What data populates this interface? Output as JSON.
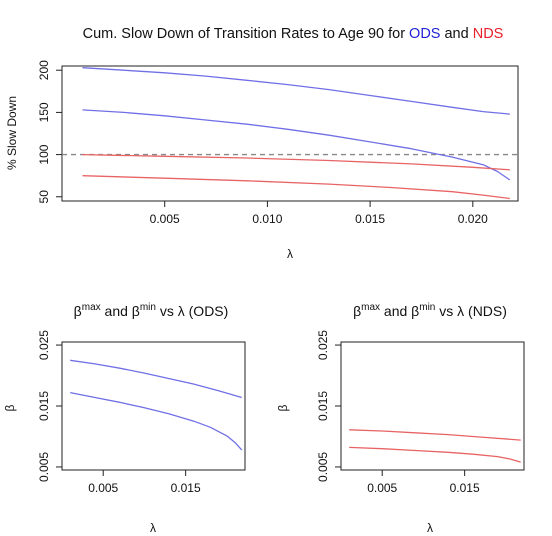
{
  "colors": {
    "ods": "#7070e6",
    "nds": "#e86464",
    "ref": "#888888"
  },
  "chart_data": [
    {
      "id": "top",
      "type": "line",
      "title": "Cum. Slow Down of Transition Rates to Age 90 for ODS and NDS",
      "title_parts": {
        "pre": "Cum. Slow Down of Transition Rates to Age 90 for ",
        "ods": "ODS",
        "and": " and ",
        "nds": "NDS"
      },
      "xlabel": "λ",
      "ylabel": "% Slow Down",
      "xlim": [
        0.0,
        0.0222
      ],
      "ylim": [
        45,
        205
      ],
      "xticks": [
        0.005,
        0.01,
        0.015,
        0.02
      ],
      "xtick_labels": [
        "0.005",
        "0.010",
        "0.015",
        "0.020"
      ],
      "yticks": [
        50,
        100,
        150,
        200
      ],
      "ytick_labels": [
        "50",
        "100",
        "150",
        "200"
      ],
      "reference_line": 100,
      "series": [
        {
          "color": "ods",
          "x": [
            0.001,
            0.003,
            0.005,
            0.007,
            0.009,
            0.011,
            0.013,
            0.015,
            0.017,
            0.019,
            0.0205,
            0.0218
          ],
          "y": [
            203,
            200,
            197,
            193,
            188,
            183,
            177,
            170,
            163,
            156,
            151,
            148
          ]
        },
        {
          "color": "ods",
          "x": [
            0.001,
            0.003,
            0.005,
            0.007,
            0.009,
            0.011,
            0.013,
            0.015,
            0.017,
            0.019,
            0.0205,
            0.0212,
            0.0218
          ],
          "y": [
            153,
            150,
            146,
            141,
            136,
            130,
            123,
            115,
            107,
            97,
            88,
            80,
            70
          ]
        },
        {
          "color": "nds",
          "x": [
            0.001,
            0.005,
            0.009,
            0.013,
            0.017,
            0.02,
            0.0218
          ],
          "y": [
            100,
            98,
            96,
            93,
            89,
            85,
            82
          ]
        },
        {
          "color": "nds",
          "x": [
            0.001,
            0.005,
            0.009,
            0.013,
            0.016,
            0.019,
            0.0205,
            0.0218
          ],
          "y": [
            75,
            72,
            69,
            65,
            61,
            56,
            52,
            48
          ]
        }
      ]
    },
    {
      "id": "left",
      "type": "line",
      "title": "βmax and βmin vs λ (ODS)",
      "title_parts": {
        "b1": "β",
        "s1": "max",
        "and": " and ",
        "b2": "β",
        "s2": "min",
        "rest": " vs λ (ODS)"
      },
      "xlabel": "λ",
      "ylabel": "β",
      "xlim": [
        0.0,
        0.0222
      ],
      "ylim": [
        0.0045,
        0.0255
      ],
      "xticks": [
        0.005,
        0.015
      ],
      "xtick_labels": [
        "0.005",
        "0.015"
      ],
      "yticks": [
        0.005,
        0.015,
        0.025
      ],
      "ytick_labels": [
        "0.005",
        "0.015",
        "0.025"
      ],
      "series": [
        {
          "color": "ods",
          "x": [
            0.001,
            0.004,
            0.007,
            0.01,
            0.013,
            0.016,
            0.019,
            0.0218
          ],
          "y": [
            0.0225,
            0.0219,
            0.0212,
            0.0204,
            0.0195,
            0.0186,
            0.0175,
            0.0164
          ]
        },
        {
          "color": "ods",
          "x": [
            0.001,
            0.004,
            0.007,
            0.01,
            0.013,
            0.016,
            0.018,
            0.02,
            0.021,
            0.0218
          ],
          "y": [
            0.0172,
            0.0164,
            0.0156,
            0.0147,
            0.0137,
            0.0125,
            0.0115,
            0.0101,
            0.009,
            0.0078
          ]
        }
      ]
    },
    {
      "id": "right",
      "type": "line",
      "title": "βmax and βmin vs λ (NDS)",
      "title_parts": {
        "b1": "β",
        "s1": "max",
        "and": " and ",
        "b2": "β",
        "s2": "min",
        "rest": " vs λ (NDS)"
      },
      "xlabel": "λ",
      "ylabel": "β",
      "xlim": [
        0.0,
        0.0222
      ],
      "ylim": [
        0.0045,
        0.0255
      ],
      "xticks": [
        0.005,
        0.015
      ],
      "xtick_labels": [
        "0.005",
        "0.015"
      ],
      "yticks": [
        0.005,
        0.015,
        0.025
      ],
      "ytick_labels": [
        "0.005",
        "0.015",
        "0.025"
      ],
      "series": [
        {
          "color": "nds",
          "x": [
            0.001,
            0.005,
            0.009,
            0.013,
            0.017,
            0.0218
          ],
          "y": [
            0.0111,
            0.0109,
            0.0106,
            0.0103,
            0.0099,
            0.0094
          ]
        },
        {
          "color": "nds",
          "x": [
            0.001,
            0.005,
            0.009,
            0.013,
            0.016,
            0.019,
            0.0205,
            0.0218
          ],
          "y": [
            0.0082,
            0.008,
            0.0077,
            0.0074,
            0.0071,
            0.0067,
            0.0063,
            0.0058
          ]
        }
      ]
    }
  ]
}
